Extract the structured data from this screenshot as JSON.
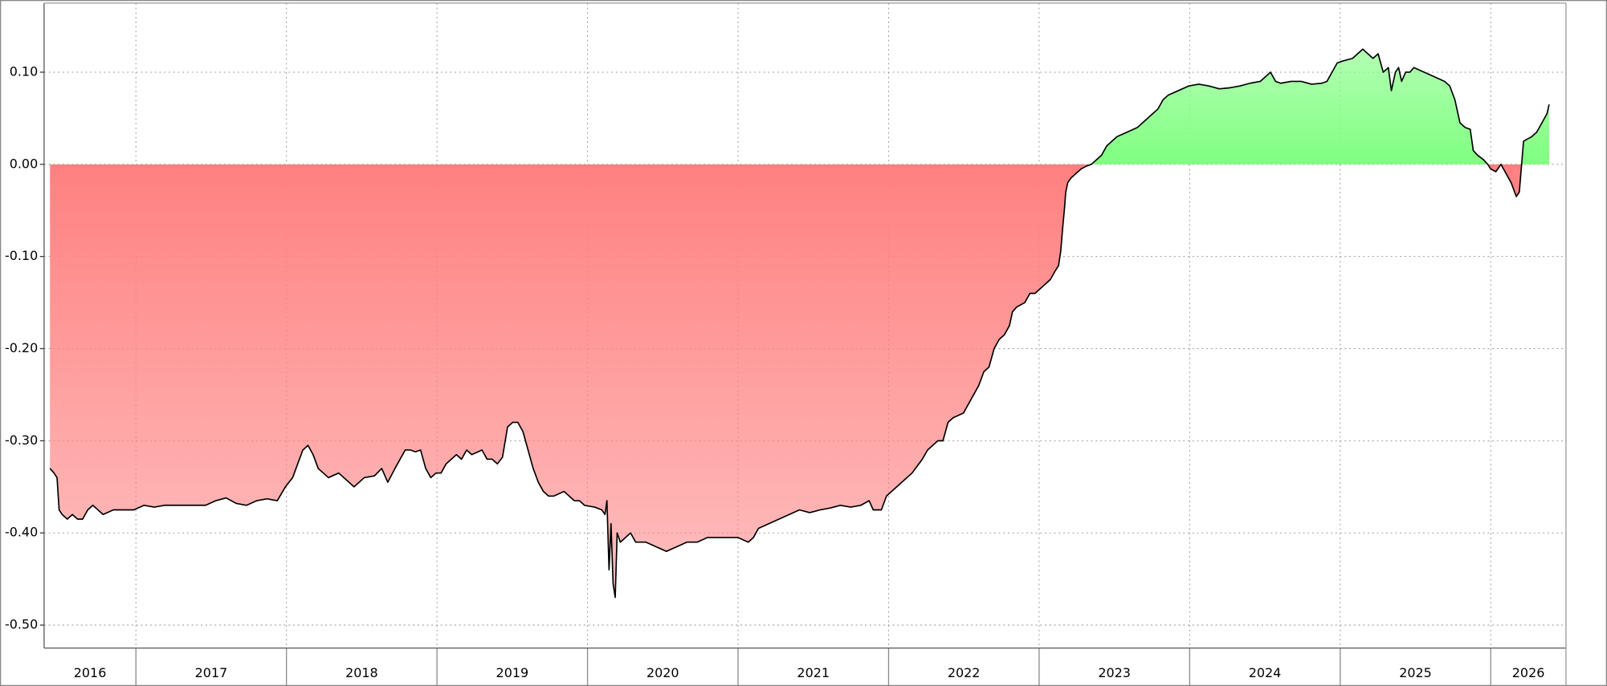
{
  "chart_data": {
    "type": "area",
    "x": [
      2016.429,
      2016.456,
      2016.476,
      2016.49,
      2016.51,
      2016.544,
      2016.578,
      2016.612,
      2016.646,
      2016.68,
      2016.714,
      2016.748,
      2016.782,
      2016.85,
      2016.918,
      2016.986,
      2017.054,
      2017.122,
      2017.19,
      2017.259,
      2017.327,
      2017.395,
      2017.463,
      2017.531,
      2017.599,
      2017.667,
      2017.735,
      2017.803,
      2017.871,
      2017.939,
      2017.993,
      2018.041,
      2018.075,
      2018.109,
      2018.143,
      2018.177,
      2018.211,
      2018.245,
      2018.279,
      2018.347,
      2018.415,
      2018.449,
      2018.517,
      2018.585,
      2018.633,
      2018.673,
      2018.721,
      2018.755,
      2018.789,
      2018.823,
      2018.857,
      2018.891,
      2018.925,
      2018.959,
      2018.993,
      2019.027,
      2019.061,
      2019.095,
      2019.129,
      2019.163,
      2019.197,
      2019.231,
      2019.299,
      2019.333,
      2019.367,
      2019.401,
      2019.435,
      2019.469,
      2019.503,
      2019.537,
      2019.571,
      2019.605,
      2019.639,
      2019.673,
      2019.707,
      2019.741,
      2019.776,
      2019.844,
      2019.878,
      2019.912,
      2019.946,
      2019.98,
      2020.048,
      2020.095,
      2020.116,
      2020.129,
      2020.143,
      2020.156,
      2020.17,
      2020.184,
      2020.197,
      2020.218,
      2020.252,
      2020.286,
      2020.32,
      2020.388,
      2020.456,
      2020.524,
      2020.592,
      2020.66,
      2020.728,
      2020.796,
      2020.864,
      2020.932,
      2021.0,
      2021.068,
      2021.102,
      2021.136,
      2021.204,
      2021.272,
      2021.34,
      2021.408,
      2021.476,
      2021.544,
      2021.612,
      2021.68,
      2021.748,
      2021.816,
      2021.871,
      2021.898,
      2021.952,
      2021.986,
      2022.02,
      2022.088,
      2022.156,
      2022.224,
      2022.259,
      2022.293,
      2022.327,
      2022.361,
      2022.395,
      2022.429,
      2022.497,
      2022.531,
      2022.565,
      2022.599,
      2022.633,
      2022.667,
      2022.701,
      2022.735,
      2022.769,
      2022.803,
      2022.823,
      2022.85,
      2022.905,
      2022.939,
      2022.973,
      2023.007,
      2023.041,
      2023.075,
      2023.109,
      2023.129,
      2023.143,
      2023.156,
      2023.17,
      2023.177,
      2023.19,
      2023.211,
      2023.245,
      2023.279,
      2023.313,
      2023.347,
      2023.381,
      2023.415,
      2023.449,
      2023.483,
      2023.517,
      2023.585,
      2023.653,
      2023.721,
      2023.789,
      2023.823,
      2023.857,
      2023.925,
      2023.993,
      2024.061,
      2024.129,
      2024.197,
      2024.265,
      2024.333,
      2024.401,
      2024.469,
      2024.537,
      2024.571,
      2024.605,
      2024.673,
      2024.741,
      2024.81,
      2024.878,
      2024.912,
      2024.946,
      2024.98,
      2025.014,
      2025.082,
      2025.15,
      2025.184,
      2025.218,
      2025.252,
      2025.286,
      2025.32,
      2025.34,
      2025.367,
      2025.388,
      2025.408,
      2025.435,
      2025.463,
      2025.49,
      2025.558,
      2025.626,
      2025.694,
      2025.728,
      2025.762,
      2025.796,
      2025.83,
      2025.864,
      2025.884,
      2025.912,
      2025.952,
      2025.98,
      2026.0,
      2026.034,
      2026.068,
      2026.102,
      2026.136,
      2026.17,
      2026.19,
      2026.218,
      2026.238,
      2026.272,
      2026.306,
      2026.34,
      2026.374,
      2026.388
    ],
    "values": [
      -0.33,
      -0.335,
      -0.34,
      -0.375,
      -0.38,
      -0.385,
      -0.38,
      -0.385,
      -0.385,
      -0.375,
      -0.37,
      -0.375,
      -0.38,
      -0.375,
      -0.375,
      -0.375,
      -0.37,
      -0.372,
      -0.37,
      -0.37,
      -0.37,
      -0.37,
      -0.37,
      -0.365,
      -0.362,
      -0.368,
      -0.37,
      -0.365,
      -0.363,
      -0.365,
      -0.35,
      -0.34,
      -0.325,
      -0.31,
      -0.305,
      -0.315,
      -0.33,
      -0.335,
      -0.34,
      -0.335,
      -0.345,
      -0.35,
      -0.34,
      -0.338,
      -0.33,
      -0.345,
      -0.33,
      -0.32,
      -0.31,
      -0.31,
      -0.312,
      -0.31,
      -0.33,
      -0.34,
      -0.335,
      -0.335,
      -0.325,
      -0.32,
      -0.315,
      -0.32,
      -0.31,
      -0.315,
      -0.31,
      -0.32,
      -0.32,
      -0.325,
      -0.318,
      -0.285,
      -0.28,
      -0.28,
      -0.29,
      -0.31,
      -0.33,
      -0.345,
      -0.355,
      -0.36,
      -0.36,
      -0.355,
      -0.36,
      -0.365,
      -0.365,
      -0.37,
      -0.372,
      -0.375,
      -0.38,
      -0.365,
      -0.44,
      -0.39,
      -0.455,
      -0.47,
      -0.4,
      -0.41,
      -0.405,
      -0.4,
      -0.41,
      -0.41,
      -0.415,
      -0.42,
      -0.415,
      -0.41,
      -0.41,
      -0.405,
      -0.405,
      -0.405,
      -0.405,
      -0.41,
      -0.405,
      -0.395,
      -0.39,
      -0.385,
      -0.38,
      -0.375,
      -0.378,
      -0.375,
      -0.373,
      -0.37,
      -0.372,
      -0.37,
      -0.365,
      -0.375,
      -0.375,
      -0.36,
      -0.355,
      -0.345,
      -0.335,
      -0.32,
      -0.31,
      -0.305,
      -0.3,
      -0.3,
      -0.28,
      -0.275,
      -0.27,
      -0.26,
      -0.25,
      -0.24,
      -0.225,
      -0.22,
      -0.2,
      -0.19,
      -0.185,
      -0.175,
      -0.16,
      -0.155,
      -0.15,
      -0.14,
      -0.14,
      -0.135,
      -0.13,
      -0.125,
      -0.115,
      -0.11,
      -0.095,
      -0.07,
      -0.045,
      -0.03,
      -0.02,
      -0.015,
      -0.01,
      -0.005,
      -0.002,
      0,
      0.005,
      0.01,
      0.02,
      0.025,
      0.03,
      0.035,
      0.04,
      0.05,
      0.06,
      0.07,
      0.075,
      0.08,
      0.085,
      0.087,
      0.085,
      0.082,
      0.083,
      0.085,
      0.088,
      0.09,
      0.1,
      0.09,
      0.088,
      0.09,
      0.09,
      0.087,
      0.088,
      0.09,
      0.1,
      0.11,
      0.112,
      0.115,
      0.125,
      0.12,
      0.115,
      0.12,
      0.1,
      0.105,
      0.08,
      0.1,
      0.105,
      0.09,
      0.1,
      0.1,
      0.105,
      0.1,
      0.095,
      0.09,
      0.085,
      0.07,
      0.045,
      0.04,
      0.038,
      0.015,
      0.01,
      0.005,
      0,
      -0.005,
      -0.008,
      0,
      -0.01,
      -0.02,
      -0.035,
      -0.03,
      0.025,
      0.027,
      0.03,
      0.035,
      0.045,
      0.055,
      0.065
    ],
    "line_color": "#000000",
    "positive_color": "#80ff80",
    "negative_color": "#ff8080",
    "xlim": [
      2016.39,
      2026.5
    ],
    "xticks": [
      2017,
      2018,
      2019,
      2020,
      2021,
      2022,
      2023,
      2024,
      2025,
      2026
    ],
    "period_labels": [
      "2016",
      "2017",
      "2018",
      "2019",
      "2020",
      "2021",
      "2022",
      "2023",
      "2024",
      "2025",
      "2026"
    ],
    "ylim": [
      -0.525,
      0.175
    ],
    "yticks": [
      {
        "value": 0.1,
        "label": "0.10"
      },
      {
        "value": 0,
        "label": "0.00"
      },
      {
        "value": -0.1,
        "label": "-0.10"
      },
      {
        "value": -0.2,
        "label": "-0.20"
      },
      {
        "value": -0.3,
        "label": "-0.30"
      },
      {
        "value": -0.4,
        "label": "-0.40"
      },
      {
        "value": -0.5,
        "label": "-0.50"
      }
    ],
    "grid": true
  }
}
